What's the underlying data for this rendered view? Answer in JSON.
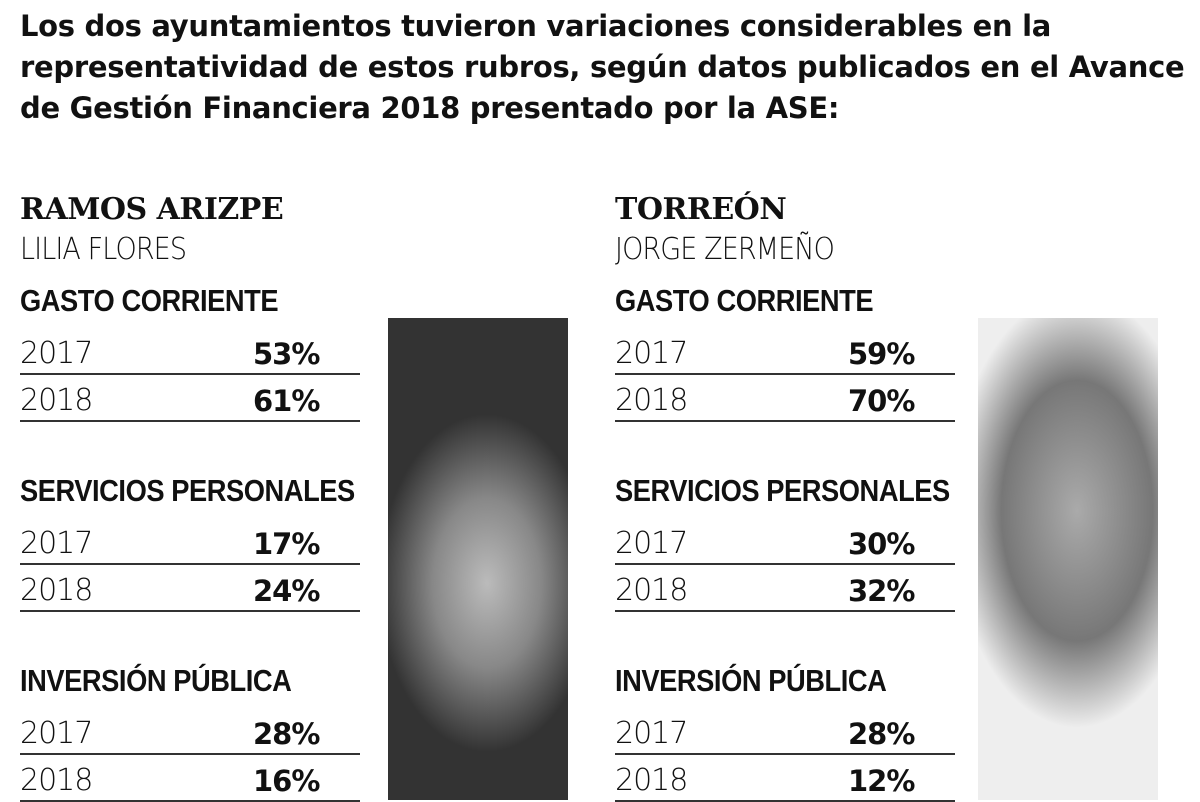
{
  "intro": "Los dos ayuntamientos tuvieron variaciones considerables en la representatividad de estos rubros, según datos publicados en el Avance de Gestión Financiera 2018 presentado por la ASE:",
  "cities": [
    {
      "name": "RAMOS ARIZPE",
      "mayor": "LILIA FLORES",
      "sections": [
        {
          "title": "GASTO CORRIENTE",
          "rows": [
            {
              "year": "2017",
              "value": "53%"
            },
            {
              "year": "2018",
              "value": "61%"
            }
          ]
        },
        {
          "title": "SERVICIOS PERSONALES",
          "rows": [
            {
              "year": "2017",
              "value": "17%"
            },
            {
              "year": "2018",
              "value": "24%"
            }
          ]
        },
        {
          "title": "INVERSIÓN PÚBLICA",
          "rows": [
            {
              "year": "2017",
              "value": "28%"
            },
            {
              "year": "2018",
              "value": "16%"
            }
          ]
        }
      ]
    },
    {
      "name": "TORREÓN",
      "mayor": "JORGE ZERMEÑO",
      "sections": [
        {
          "title": "GASTO CORRIENTE",
          "rows": [
            {
              "year": "2017",
              "value": "59%"
            },
            {
              "year": "2018",
              "value": "70%"
            }
          ]
        },
        {
          "title": "SERVICIOS PERSONALES",
          "rows": [
            {
              "year": "2017",
              "value": "30%"
            },
            {
              "year": "2018",
              "value": "32%"
            }
          ]
        },
        {
          "title": "INVERSIÓN PÚBLICA",
          "rows": [
            {
              "year": "2017",
              "value": "28%"
            },
            {
              "year": "2018",
              "value": "12%"
            }
          ]
        }
      ]
    }
  ]
}
